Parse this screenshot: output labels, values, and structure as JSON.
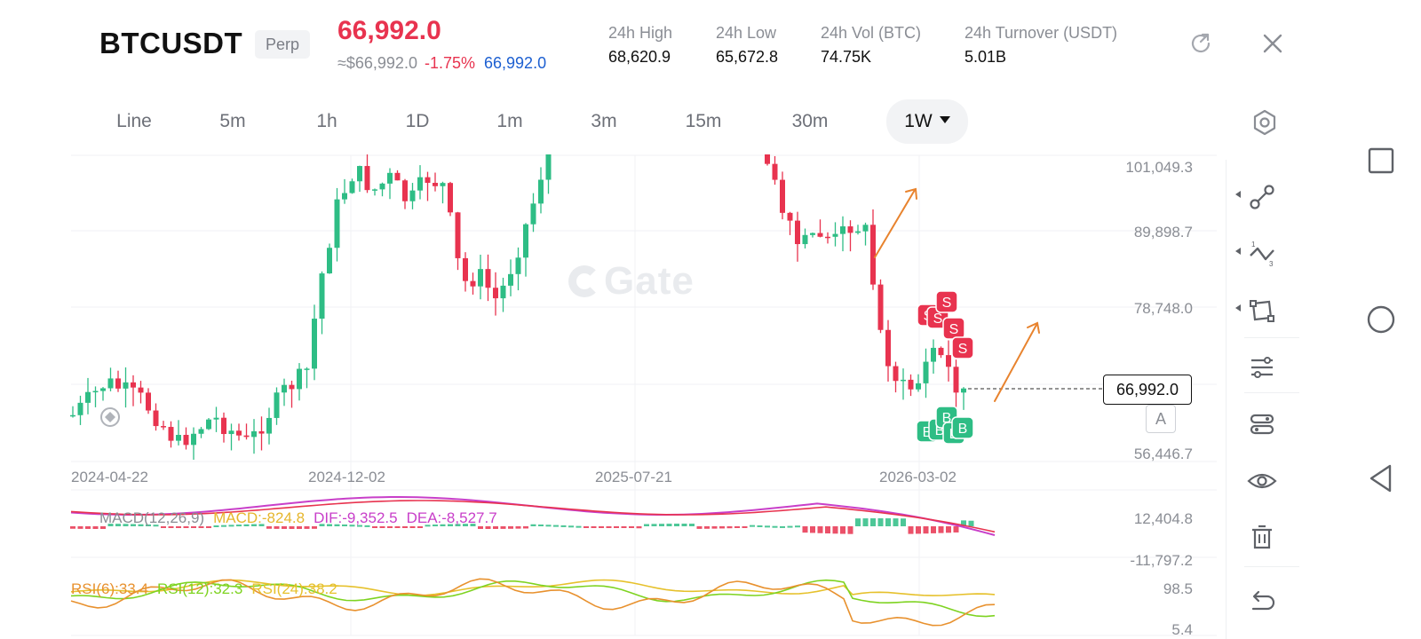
{
  "header": {
    "symbol": "BTCUSDT",
    "contract_type": "Perp",
    "last_price": "66,992.0",
    "usd_price": "≈$66,992.0",
    "change_pct": "-1.75%",
    "mark_price": "66,992.0",
    "stats": [
      {
        "label": "24h  High",
        "value": "68,620.9"
      },
      {
        "label": "24h  Low",
        "value": "65,672.8"
      },
      {
        "label": "24h  Vol (BTC)",
        "value": "74.75K"
      },
      {
        "label": "24h  Turnover (USDT)",
        "value": "5.01B"
      }
    ],
    "icons": [
      "share-icon",
      "close-icon"
    ]
  },
  "timeframes": {
    "items": [
      "Line",
      "5m",
      "1h",
      "1D",
      "1m",
      "3m",
      "15m",
      "30m",
      "1W"
    ],
    "active": "1W"
  },
  "chart": {
    "watermark": "Gate",
    "current_price_tag": "66,992.0",
    "auto_scale_label": "A",
    "price_axis": [
      "101,049.3",
      "89,898.7",
      "78,748.0",
      "56,446.7"
    ],
    "date_axis": [
      "2024-04-22",
      "2024-12-02",
      "2025-07-21",
      "2026-03-02"
    ],
    "trade_markers": {
      "sell": "S",
      "buy": "B"
    },
    "macd": {
      "params": "MACD(12,26,9)",
      "macd": "MACD:-824.8",
      "dif": "DIF:-9,352.5",
      "dea": "DEA:-8,527.7",
      "axis": [
        "12,404.8",
        "-11,797.2"
      ]
    },
    "rsi": {
      "rsi6": "RSI(6):33.4",
      "rsi12": "RSI(12):32.3",
      "rsi24": "RSI(24):38.2",
      "axis": [
        "98.5",
        "5.4"
      ]
    },
    "colors": {
      "up": "#2ebd85",
      "down": "#e8334f",
      "dif": "#c83fc9",
      "dea": "#e8334f",
      "rsi6": "#e8912e",
      "rsi12": "#7ed321",
      "rsi24": "#e6c12c",
      "arrow": "#e8832e"
    }
  },
  "toolbar": {
    "icons": [
      "settings-icon",
      "trend-line-icon",
      "fibonacci-icon",
      "shape-tool-icon",
      "indicator-settings-icon",
      "compare-icon",
      "visibility-icon",
      "delete-icon",
      "undo-icon"
    ]
  },
  "system_nav": {
    "icons": [
      "recent-apps-icon",
      "home-icon",
      "back-icon"
    ]
  }
}
